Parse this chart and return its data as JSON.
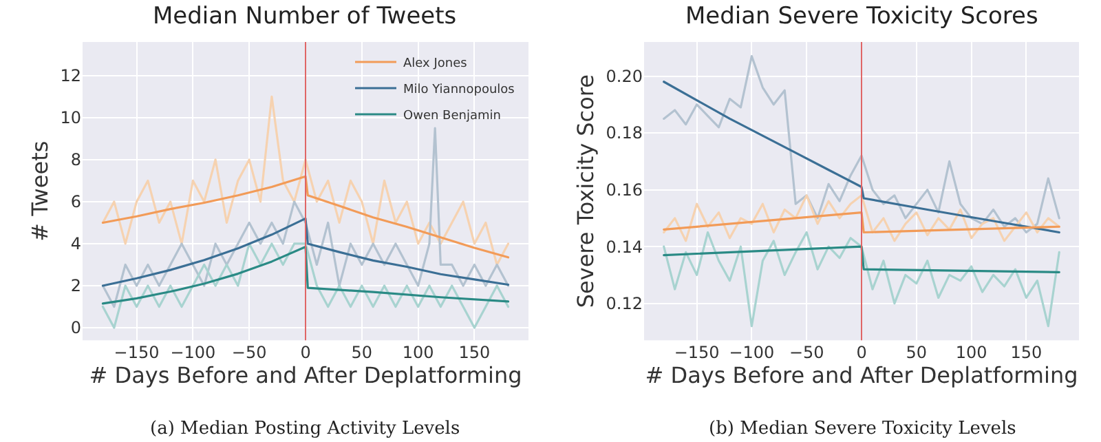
{
  "chart_data": [
    {
      "type": "line",
      "title": "Median Number of Tweets",
      "xlabel": "# Days Before and After Deplatforming",
      "ylabel": "# Tweets",
      "xlim": [
        -198,
        198
      ],
      "ylim": [
        -0.6,
        13.6
      ],
      "xticks": [
        {
          "value": -150,
          "label": "−150"
        },
        {
          "value": -100,
          "label": "−100"
        },
        {
          "value": -50,
          "label": "−50"
        },
        0,
        50,
        100,
        150
      ],
      "yticks": [
        0,
        2,
        4,
        6,
        8,
        10,
        12
      ],
      "grid": true,
      "legend": "top right",
      "ref_lines": [
        {
          "axis": "x",
          "value": 0,
          "color": "#e06666"
        }
      ],
      "annotations": [
        "(a) Median Posting Activity Levels"
      ],
      "series": [
        {
          "color": "#f6d2b0",
          "x": [
            -180,
            -170,
            -160,
            -150,
            -140,
            -130,
            -120,
            -110,
            -100,
            -90,
            -80,
            -70,
            -60,
            -50,
            -40,
            -30,
            -20,
            -10,
            0,
            10,
            20,
            30,
            40,
            50,
            60,
            70,
            80,
            90,
            100,
            110,
            120,
            130,
            140,
            150,
            160,
            170,
            180
          ],
          "values": [
            5,
            6,
            4,
            6,
            7,
            5,
            6,
            4,
            7,
            6,
            8,
            5,
            7,
            8,
            6,
            11,
            7,
            6,
            8,
            6,
            7,
            5,
            7,
            6,
            4,
            7,
            5,
            6,
            4,
            5,
            4,
            5,
            6,
            4,
            5,
            3,
            4
          ]
        },
        {
          "color": "#b3c2d0",
          "x": [
            -180,
            -170,
            -160,
            -150,
            -140,
            -130,
            -120,
            -110,
            -100,
            -90,
            -80,
            -70,
            -60,
            -50,
            -40,
            -30,
            -20,
            -10,
            0,
            10,
            20,
            30,
            40,
            50,
            60,
            70,
            80,
            90,
            100,
            110,
            115,
            120,
            130,
            140,
            150,
            160,
            170,
            180
          ],
          "values": [
            2,
            1,
            3,
            2,
            3,
            2,
            3,
            4,
            3,
            2,
            4,
            3,
            4,
            5,
            4,
            5,
            4,
            6,
            5,
            3,
            5,
            2,
            4,
            3,
            4,
            3,
            4,
            3,
            2,
            4,
            9.5,
            3,
            3,
            2,
            3,
            2,
            3,
            2
          ]
        },
        {
          "color": "#a8d3d0",
          "x": [
            -180,
            -170,
            -160,
            -150,
            -140,
            -130,
            -120,
            -110,
            -100,
            -90,
            -80,
            -70,
            -60,
            -50,
            -40,
            -30,
            -20,
            -10,
            0,
            10,
            20,
            30,
            40,
            50,
            60,
            70,
            80,
            90,
            100,
            110,
            120,
            130,
            140,
            150,
            160,
            170,
            180
          ],
          "values": [
            1,
            0,
            2,
            1,
            2,
            1,
            2,
            1,
            2,
            3,
            2,
            3,
            2,
            4,
            3,
            4,
            3,
            4,
            4,
            2,
            1,
            2,
            1,
            2,
            1,
            2,
            1,
            2,
            1,
            2,
            1,
            2,
            1,
            0,
            1,
            2,
            1
          ]
        },
        {
          "name": "Alex Jones",
          "color": "#f29b58",
          "x": [
            -180,
            -150,
            -120,
            -90,
            -60,
            -30,
            0,
            2,
            30,
            60,
            90,
            120,
            150,
            180
          ],
          "values": [
            5.0,
            5.3,
            5.65,
            5.95,
            6.3,
            6.7,
            7.2,
            6.3,
            5.8,
            5.25,
            4.8,
            4.3,
            3.8,
            3.35
          ]
        },
        {
          "name": "Milo Yiannopoulos",
          "color": "#3b6f95",
          "x": [
            -180,
            -150,
            -120,
            -90,
            -60,
            -30,
            0,
            2,
            30,
            60,
            90,
            120,
            150,
            180
          ],
          "values": [
            2.0,
            2.35,
            2.75,
            3.22,
            3.78,
            4.43,
            5.2,
            4.0,
            3.6,
            3.2,
            2.9,
            2.55,
            2.3,
            2.05
          ]
        },
        {
          "name": "Owen Benjamin",
          "color": "#2a8a85",
          "x": [
            -180,
            -150,
            -120,
            -90,
            -60,
            -30,
            0,
            2,
            60,
            120,
            180
          ],
          "values": [
            1.15,
            1.4,
            1.72,
            2.1,
            2.57,
            3.15,
            3.85,
            1.9,
            1.7,
            1.45,
            1.25
          ]
        }
      ]
    },
    {
      "type": "line",
      "title": "Median Severe Toxicity Scores",
      "xlabel": "# Days Before and After Deplatforming",
      "ylabel": "Severe Toxicity Score",
      "xlim": [
        -198,
        198
      ],
      "ylim": [
        0.107,
        0.212
      ],
      "xticks": [
        {
          "value": -150,
          "label": "−150"
        },
        {
          "value": -100,
          "label": "−100"
        },
        {
          "value": -50,
          "label": "−50"
        },
        0,
        50,
        100,
        150
      ],
      "yticks": [
        0.12,
        0.14,
        0.16,
        0.18,
        {
          "value": 0.2,
          "label": "0.20"
        }
      ],
      "grid": true,
      "ref_lines": [
        {
          "axis": "x",
          "value": 0,
          "color": "#e06666"
        }
      ],
      "annotations": [
        "(b) Median Severe Toxicity Levels"
      ],
      "series": [
        {
          "color": "#b3c2d0",
          "x": [
            -180,
            -170,
            -160,
            -150,
            -140,
            -130,
            -120,
            -110,
            -100,
            -90,
            -80,
            -70,
            -60,
            -50,
            -40,
            -30,
            -20,
            -10,
            0,
            10,
            20,
            30,
            40,
            50,
            60,
            70,
            80,
            90,
            100,
            110,
            120,
            130,
            140,
            150,
            160,
            170,
            180
          ],
          "values": [
            0.185,
            0.188,
            0.183,
            0.19,
            0.186,
            0.182,
            0.192,
            0.189,
            0.207,
            0.196,
            0.19,
            0.195,
            0.155,
            0.158,
            0.15,
            0.162,
            0.156,
            0.165,
            0.172,
            0.16,
            0.155,
            0.158,
            0.15,
            0.155,
            0.16,
            0.152,
            0.17,
            0.155,
            0.15,
            0.148,
            0.153,
            0.147,
            0.15,
            0.145,
            0.148,
            0.164,
            0.15
          ]
        },
        {
          "color": "#f6d2b0",
          "x": [
            -180,
            -170,
            -160,
            -150,
            -140,
            -130,
            -120,
            -110,
            -100,
            -90,
            -80,
            -70,
            -60,
            -50,
            -40,
            -30,
            -20,
            -10,
            0,
            10,
            20,
            30,
            40,
            50,
            60,
            70,
            80,
            90,
            100,
            110,
            120,
            130,
            140,
            150,
            160,
            170,
            180
          ],
          "values": [
            0.145,
            0.15,
            0.142,
            0.155,
            0.147,
            0.152,
            0.143,
            0.15,
            0.148,
            0.155,
            0.145,
            0.153,
            0.15,
            0.158,
            0.148,
            0.156,
            0.15,
            0.155,
            0.158,
            0.145,
            0.15,
            0.142,
            0.148,
            0.152,
            0.144,
            0.15,
            0.146,
            0.153,
            0.143,
            0.148,
            0.15,
            0.142,
            0.147,
            0.152,
            0.145,
            0.15,
            0.147
          ]
        },
        {
          "color": "#a8d3d0",
          "x": [
            -180,
            -170,
            -160,
            -150,
            -140,
            -130,
            -120,
            -110,
            -100,
            -90,
            -80,
            -70,
            -60,
            -50,
            -40,
            -30,
            -20,
            -10,
            0,
            10,
            20,
            30,
            40,
            50,
            60,
            70,
            80,
            90,
            100,
            110,
            120,
            130,
            140,
            150,
            160,
            170,
            180
          ],
          "values": [
            0.14,
            0.125,
            0.138,
            0.13,
            0.145,
            0.135,
            0.128,
            0.14,
            0.112,
            0.135,
            0.142,
            0.13,
            0.138,
            0.145,
            0.132,
            0.14,
            0.136,
            0.143,
            0.14,
            0.125,
            0.135,
            0.12,
            0.13,
            0.127,
            0.135,
            0.122,
            0.13,
            0.128,
            0.133,
            0.124,
            0.13,
            0.126,
            0.132,
            0.122,
            0.128,
            0.112,
            0.138
          ]
        },
        {
          "color": "#3b6f95",
          "x": [
            -180,
            -150,
            -120,
            -90,
            -60,
            -30,
            0,
            2,
            60,
            120,
            180
          ],
          "values": [
            0.198,
            0.1915,
            0.185,
            0.179,
            0.173,
            0.167,
            0.161,
            0.157,
            0.153,
            0.149,
            0.145
          ]
        },
        {
          "color": "#f29b58",
          "x": [
            -180,
            0,
            2,
            180
          ],
          "values": [
            0.146,
            0.152,
            0.145,
            0.147
          ]
        },
        {
          "color": "#2a8a85",
          "x": [
            -180,
            0,
            2,
            180
          ],
          "values": [
            0.137,
            0.14,
            0.132,
            0.131
          ]
        }
      ]
    }
  ]
}
